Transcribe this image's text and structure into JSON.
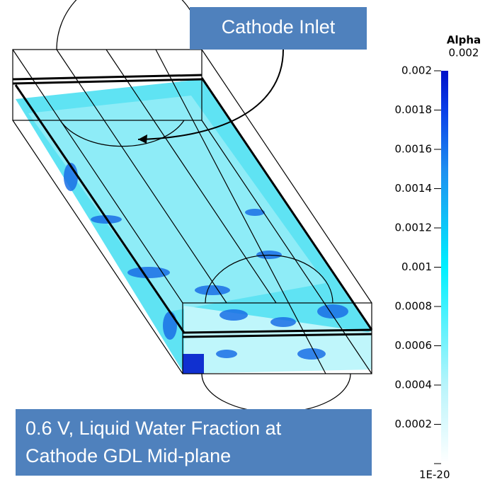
{
  "callouts": {
    "inlet": "Cathode Inlet",
    "caption_line1": "0.6 V, Liquid Water Fraction at",
    "caption_line2": "Cathode GDL Mid-plane"
  },
  "colorbar": {
    "title": "Alpha",
    "max_value": 0.002,
    "range": [
      1e-20,
      0.002
    ],
    "ticks": [
      0.002,
      0.0018,
      0.0016,
      0.0014,
      0.0012,
      0.001,
      0.0008,
      0.0006,
      0.0004,
      0.0002,
      {
        "value": 1e-20,
        "label": "1E-20"
      }
    ]
  }
}
